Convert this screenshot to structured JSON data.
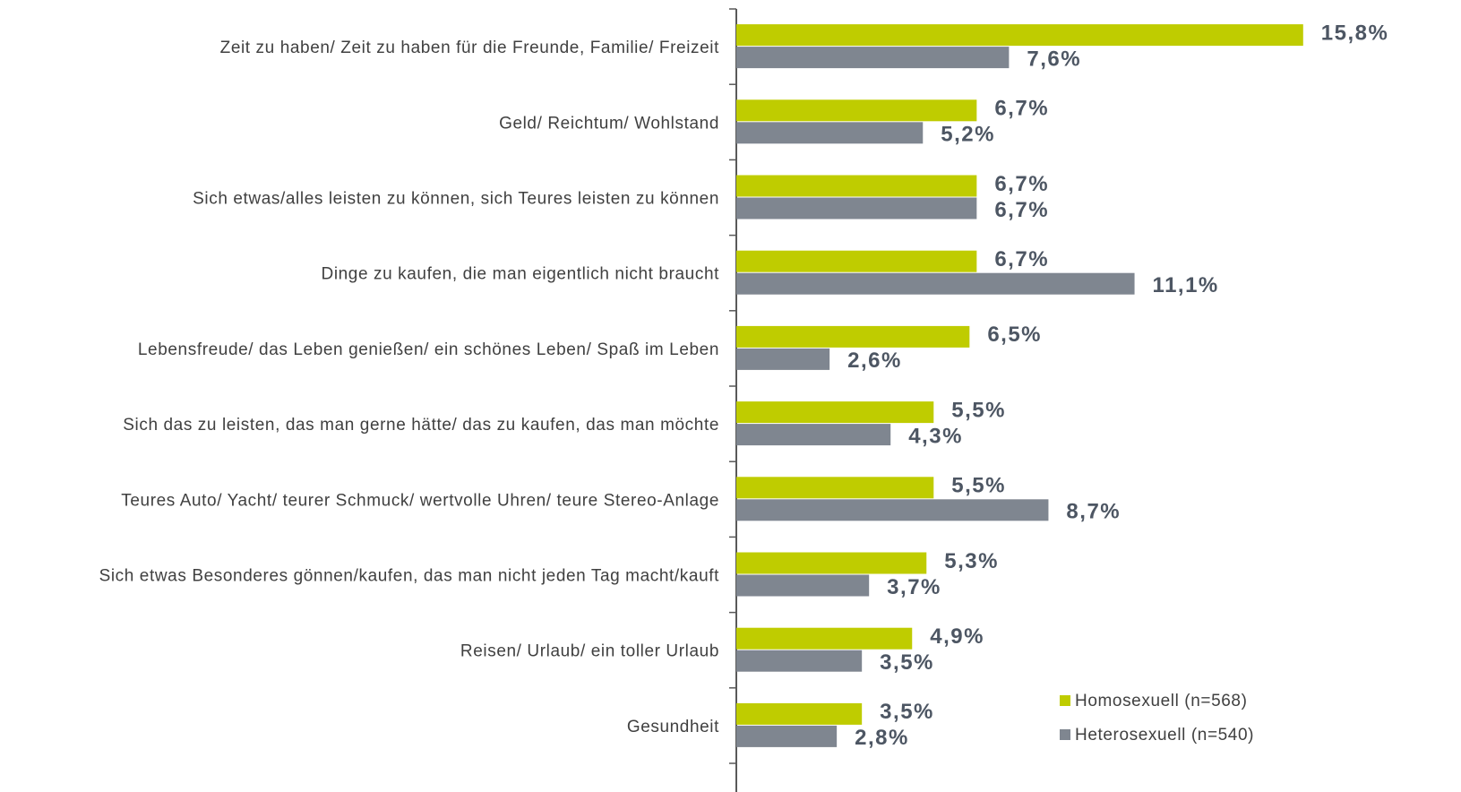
{
  "chart_data": {
    "type": "bar",
    "orientation": "horizontal",
    "categories": [
      "Zeit zu haben/ Zeit zu haben für die Freunde, Familie/ Freizeit",
      "Geld/ Reichtum/ Wohlstand",
      "Sich etwas/alles leisten zu können, sich Teures leisten zu können",
      "Dinge zu kaufen, die man eigentlich nicht braucht",
      "Lebensfreude/ das Leben genießen/ ein schönes Leben/ Spaß im Leben",
      "Sich das zu leisten, das man gerne hätte/ das zu kaufen, das man möchte",
      "Teures Auto/ Yacht/ teurer Schmuck/ wertvolle Uhren/ teure Stereo-Anlage",
      "Sich etwas Besonderes gönnen/kaufen, das man nicht jeden Tag macht/kauft",
      "Reisen/ Urlaub/ ein toller Urlaub",
      "Gesundheit"
    ],
    "series": [
      {
        "name": "Homosexuell (n=568)",
        "color": "#bfcc00",
        "values": [
          15.8,
          6.7,
          6.7,
          6.7,
          6.5,
          5.5,
          5.5,
          5.3,
          4.9,
          3.5
        ],
        "value_labels": [
          "15,8%",
          "6,7%",
          "6,7%",
          "6,7%",
          "6,5%",
          "5,5%",
          "5,5%",
          "5,3%",
          "4,9%",
          "3,5%"
        ]
      },
      {
        "name": "Heterosexuell (n=540)",
        "color": "#7f8690",
        "values": [
          7.6,
          5.2,
          6.7,
          11.1,
          2.6,
          4.3,
          8.7,
          3.7,
          3.5,
          2.8
        ],
        "value_labels": [
          "7,6%",
          "5,2%",
          "6,7%",
          "11,1%",
          "2,6%",
          "4,3%",
          "8,7%",
          "3,7%",
          "3,5%",
          "2,8%"
        ]
      }
    ],
    "xlim": [
      0,
      20
    ],
    "legend": "lower right"
  }
}
